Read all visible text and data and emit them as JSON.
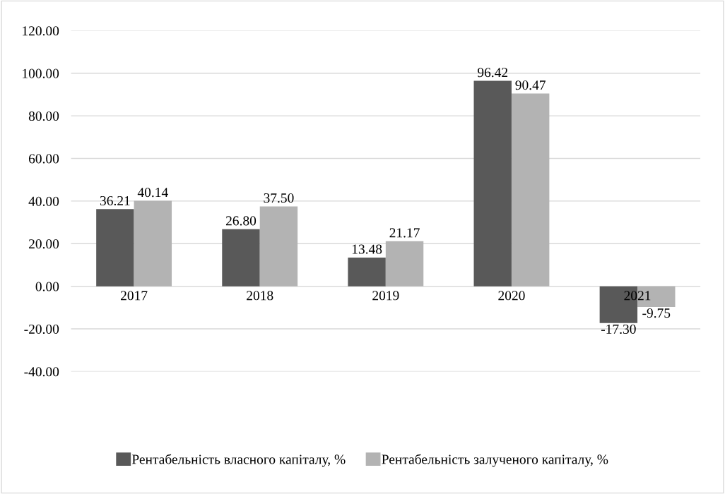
{
  "chart_data": {
    "type": "bar",
    "categories": [
      "2017",
      "2018",
      "2019",
      "2020",
      "2021"
    ],
    "series": [
      {
        "name": "Рентабельність власного капіталу, %",
        "color": "#595959",
        "values": [
          36.21,
          26.8,
          13.48,
          96.42,
          -17.3
        ],
        "value_labels": [
          "36.21",
          "26.80",
          "13.48",
          "96.42",
          "-17.30"
        ]
      },
      {
        "name": "Рентабельність залученого капіталу, %",
        "color": "#b3b3b3",
        "values": [
          40.14,
          37.5,
          21.17,
          90.47,
          -9.75
        ],
        "value_labels": [
          "40.14",
          "37.50",
          "21.17",
          "90.47",
          "-9.75"
        ]
      }
    ],
    "ylim": [
      -40,
      120
    ],
    "yticks": [
      {
        "value": -40,
        "label": "-40.00"
      },
      {
        "value": -20,
        "label": "-20.00"
      },
      {
        "value": 0,
        "label": "0.00"
      },
      {
        "value": 20,
        "label": "20.00"
      },
      {
        "value": 40,
        "label": "40.00"
      },
      {
        "value": 60,
        "label": "60.00"
      },
      {
        "value": 80,
        "label": "80.00"
      },
      {
        "value": 100,
        "label": "100.00"
      },
      {
        "value": 120,
        "label": "120.00"
      }
    ],
    "grid": "y",
    "legend": "bottom"
  }
}
